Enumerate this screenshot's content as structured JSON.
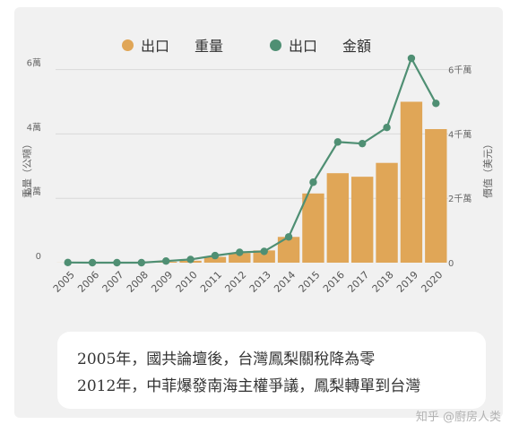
{
  "legend": {
    "item1_label": "出口",
    "item1_sub": "重量",
    "item2_label": "出口",
    "item2_sub": "金額"
  },
  "colors": {
    "bar": "#e0a657",
    "line": "#4f8f73",
    "grid": "#d9d9d9",
    "text": "#666666"
  },
  "chart_data": {
    "type": "bar+line",
    "categories": [
      "2005",
      "2006",
      "2007",
      "2008",
      "2009",
      "2010",
      "2011",
      "2012",
      "2013",
      "2014",
      "2015",
      "2016",
      "2017",
      "2018",
      "2019",
      "2020"
    ],
    "series": [
      {
        "name": "出口 重量",
        "type": "bar",
        "axis": "left",
        "values": [
          0.002,
          0.005,
          0.008,
          0.01,
          0.03,
          0.06,
          0.18,
          0.3,
          0.38,
          0.8,
          2.15,
          2.78,
          2.67,
          3.1,
          5.0,
          4.15
        ]
      },
      {
        "name": "出口 金額",
        "type": "line",
        "axis": "right",
        "values": [
          0.005,
          0.0,
          0.0,
          0.0,
          0.05,
          0.1,
          0.22,
          0.32,
          0.35,
          0.8,
          2.5,
          3.75,
          3.7,
          4.2,
          6.35,
          4.95
        ]
      }
    ],
    "y_left": {
      "label": "重量（公噸）",
      "ticks": [
        "0",
        "2萬",
        "4萬",
        "6萬"
      ],
      "range": [
        0,
        6.1
      ]
    },
    "y_right": {
      "label": "價值（美元）",
      "ticks": [
        "0",
        "2千萬",
        "4千萬",
        "6千萬"
      ],
      "range": [
        0,
        6.1
      ]
    },
    "legend_position": "top"
  },
  "annotation": {
    "line1": "2005年，國共論壇後，台灣鳳梨關稅降為零",
    "line2": "2012年，中菲爆發南海主權爭議，鳳梨轉單到台灣"
  },
  "watermark": "知乎 @廚房人类"
}
